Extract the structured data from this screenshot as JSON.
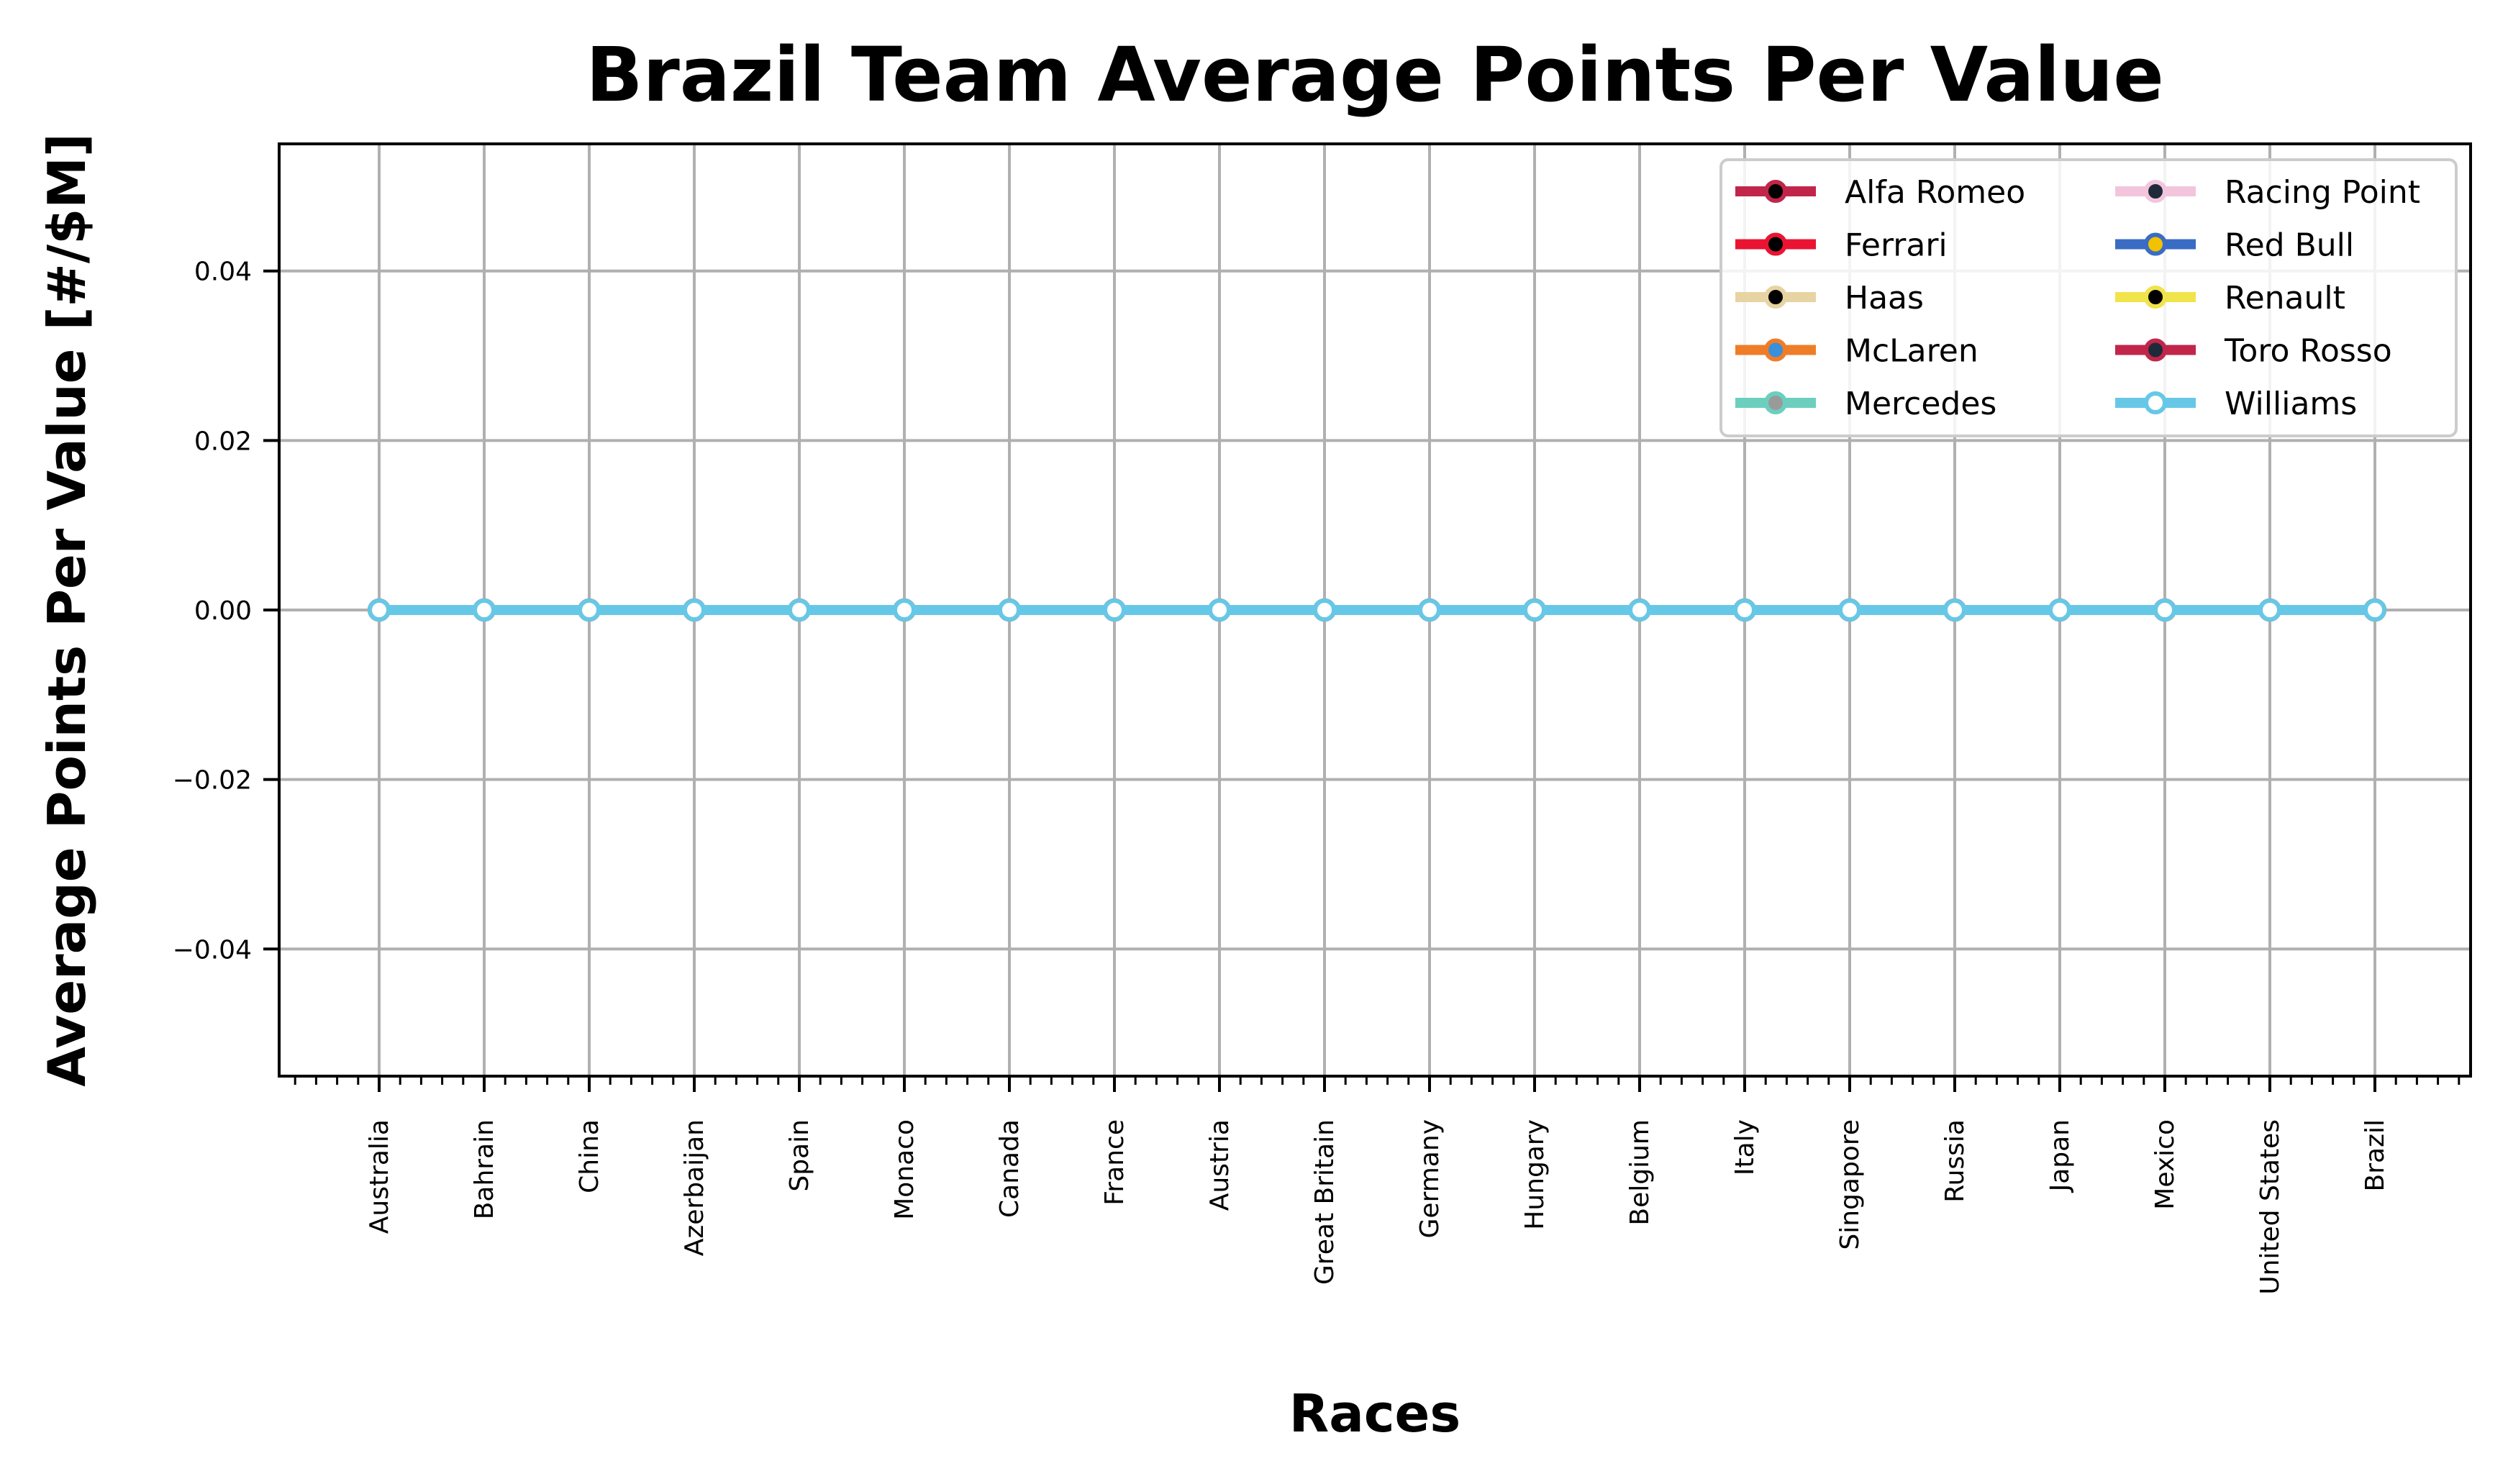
{
  "chart_data": {
    "type": "line",
    "title": "Brazil Team Average Points Per Value",
    "xlabel": "Races",
    "ylabel": "Average Points Per Value [#/$M]",
    "categories": [
      "Australia",
      "Bahrain",
      "China",
      "Azerbaijan",
      "Spain",
      "Monaco",
      "Canada",
      "France",
      "Austria",
      "Great Britain",
      "Germany",
      "Hungary",
      "Belgium",
      "Italy",
      "Singapore",
      "Russia",
      "Japan",
      "Mexico",
      "United States",
      "Brazil"
    ],
    "ylim": [
      -0.055,
      0.055
    ],
    "yticks": [
      -0.04,
      -0.02,
      0.0,
      0.02,
      0.04
    ],
    "ytick_labels": [
      "−0.04",
      "−0.02",
      "0.00",
      "0.02",
      "0.04"
    ],
    "grid": true,
    "legend_position": "top-right",
    "series": [
      {
        "name": "Alfa Romeo",
        "color": "#c1264a",
        "marker_color": "#000000",
        "values": [
          0,
          0,
          0,
          0,
          0,
          0,
          0,
          0,
          0,
          0,
          0,
          0,
          0,
          0,
          0,
          0,
          0,
          0,
          0,
          0
        ]
      },
      {
        "name": "Ferrari",
        "color": "#ea1432",
        "marker_color": "#000000",
        "values": [
          0,
          0,
          0,
          0,
          0,
          0,
          0,
          0,
          0,
          0,
          0,
          0,
          0,
          0,
          0,
          0,
          0,
          0,
          0,
          0
        ]
      },
      {
        "name": "Haas",
        "color": "#e8d3a2",
        "marker_color": "#000000",
        "values": [
          0,
          0,
          0,
          0,
          0,
          0,
          0,
          0,
          0,
          0,
          0,
          0,
          0,
          0,
          0,
          0,
          0,
          0,
          0,
          0
        ]
      },
      {
        "name": "McLaren",
        "color": "#ef7d28",
        "marker_color": "#3a8fd9",
        "values": [
          0,
          0,
          0,
          0,
          0,
          0,
          0,
          0,
          0,
          0,
          0,
          0,
          0,
          0,
          0,
          0,
          0,
          0,
          0,
          0
        ]
      },
      {
        "name": "Mercedes",
        "color": "#6ccfbe",
        "marker_color": "#9a9a9a",
        "values": [
          0,
          0,
          0,
          0,
          0,
          0,
          0,
          0,
          0,
          0,
          0,
          0,
          0,
          0,
          0,
          0,
          0,
          0,
          0,
          0
        ]
      },
      {
        "name": "Racing Point",
        "color": "#f3c5dc",
        "marker_color": "#1e2a3a",
        "values": [
          0,
          0,
          0,
          0,
          0,
          0,
          0,
          0,
          0,
          0,
          0,
          0,
          0,
          0,
          0,
          0,
          0,
          0,
          0,
          0
        ]
      },
      {
        "name": "Red Bull",
        "color": "#3a6cc4",
        "marker_color": "#f2c200",
        "values": [
          0,
          0,
          0,
          0,
          0,
          0,
          0,
          0,
          0,
          0,
          0,
          0,
          0,
          0,
          0,
          0,
          0,
          0,
          0,
          0
        ]
      },
      {
        "name": "Renault",
        "color": "#f1e34a",
        "marker_color": "#000000",
        "values": [
          0,
          0,
          0,
          0,
          0,
          0,
          0,
          0,
          0,
          0,
          0,
          0,
          0,
          0,
          0,
          0,
          0,
          0,
          0,
          0
        ]
      },
      {
        "name": "Toro Rosso",
        "color": "#c1264a",
        "marker_color": "#1e2a3a",
        "values": [
          0,
          0,
          0,
          0,
          0,
          0,
          0,
          0,
          0,
          0,
          0,
          0,
          0,
          0,
          0,
          0,
          0,
          0,
          0,
          0
        ]
      },
      {
        "name": "Williams",
        "color": "#66c8e6",
        "marker_color": "#ffffff",
        "values": [
          0,
          0,
          0,
          0,
          0,
          0,
          0,
          0,
          0,
          0,
          0,
          0,
          0,
          0,
          0,
          0,
          0,
          0,
          0,
          0
        ]
      }
    ]
  }
}
